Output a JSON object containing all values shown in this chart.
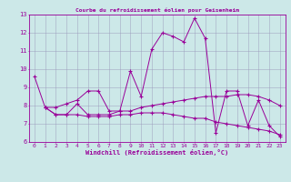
{
  "title": "Courbe du refroidissement éolien pour Geisenheim",
  "xlabel": "Windchill (Refroidissement éolien,°C)",
  "ylabel": "",
  "background_color": "#cce8e8",
  "line_color": "#990099",
  "grid_color": "#9999bb",
  "xlim": [
    -0.5,
    23.5
  ],
  "ylim": [
    6,
    13
  ],
  "xticks": [
    0,
    1,
    2,
    3,
    4,
    5,
    6,
    7,
    8,
    9,
    10,
    11,
    12,
    13,
    14,
    15,
    16,
    17,
    18,
    19,
    20,
    21,
    22,
    23
  ],
  "yticks": [
    6,
    7,
    8,
    9,
    10,
    11,
    12,
    13
  ],
  "series": [
    [
      9.6,
      7.9,
      7.9,
      8.1,
      8.3,
      8.8,
      8.8,
      7.7,
      7.7,
      9.9,
      8.5,
      11.1,
      12.0,
      11.8,
      11.5,
      12.8,
      11.7,
      6.5,
      8.8,
      8.8,
      6.9,
      8.3,
      6.9,
      6.3
    ],
    [
      null,
      7.9,
      7.5,
      7.5,
      8.1,
      7.5,
      7.5,
      7.5,
      7.7,
      7.7,
      7.9,
      8.0,
      8.1,
      8.2,
      8.3,
      8.4,
      8.5,
      8.5,
      8.5,
      8.6,
      8.6,
      8.5,
      8.3,
      8.0
    ],
    [
      null,
      7.9,
      7.5,
      7.5,
      7.5,
      7.4,
      7.4,
      7.4,
      7.5,
      7.5,
      7.6,
      7.6,
      7.6,
      7.5,
      7.4,
      7.3,
      7.3,
      7.1,
      7.0,
      6.9,
      6.8,
      6.7,
      6.6,
      6.4
    ]
  ]
}
